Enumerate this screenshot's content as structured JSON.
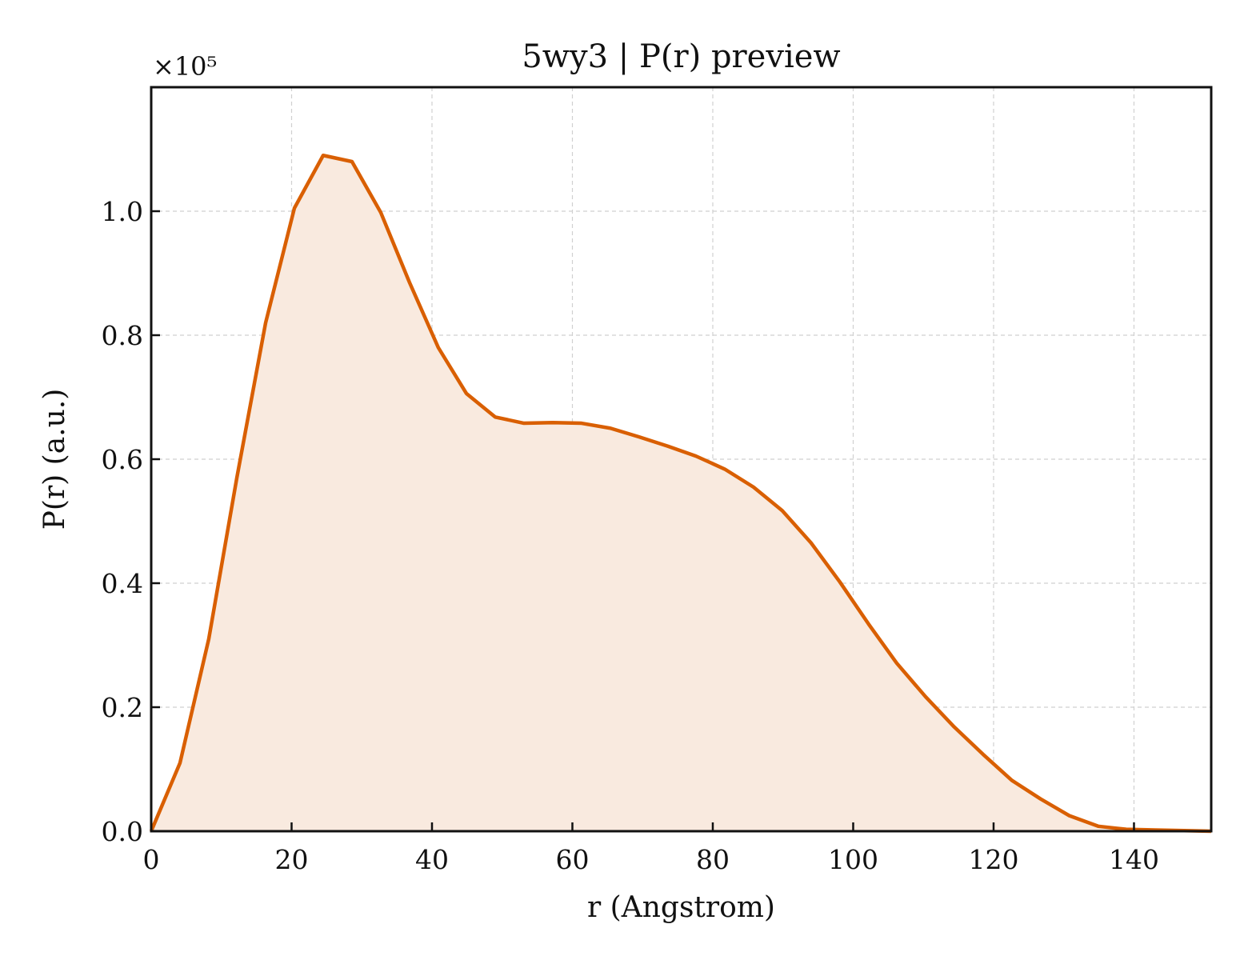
{
  "chart_data": {
    "type": "area",
    "title": "5wy3 | P(r) preview",
    "xlabel": "r (Angstrom)",
    "ylabel": "P(r) (a.u.)",
    "y_multiplier_label": "×10⁵",
    "xlim": [
      0,
      151
    ],
    "ylim": [
      0,
      1.2
    ],
    "x_ticks": [
      0,
      20,
      40,
      60,
      80,
      100,
      120,
      140
    ],
    "x_tick_labels": [
      "0",
      "20",
      "40",
      "60",
      "80",
      "100",
      "120",
      "140"
    ],
    "y_ticks": [
      0.0,
      0.2,
      0.4,
      0.6,
      0.8,
      1.0
    ],
    "y_tick_labels": [
      "0.0",
      "0.2",
      "0.4",
      "0.6",
      "0.8",
      "1.0"
    ],
    "grid": true,
    "colors": {
      "line": "#d95f02",
      "fill": "#f9eadf"
    },
    "series": [
      {
        "x": [
          0,
          4.1,
          8.2,
          12.2,
          16.3,
          20.4,
          24.5,
          28.6,
          32.7,
          36.8,
          40.9,
          44.9,
          49.0,
          53.1,
          57.2,
          61.3,
          65.4,
          69.5,
          73.6,
          77.6,
          81.7,
          85.8,
          89.9,
          94.0,
          98.1,
          102.2,
          106.2,
          110.3,
          114.4,
          118.5,
          122.6,
          126.7,
          130.8,
          134.9,
          138.9,
          143.0,
          147.1,
          151.0
        ],
        "y": [
          0.0,
          0.11,
          0.31,
          0.57,
          0.82,
          1.005,
          1.09,
          1.08,
          0.998,
          0.885,
          0.78,
          0.706,
          0.668,
          0.658,
          0.659,
          0.658,
          0.65,
          0.636,
          0.621,
          0.605,
          0.584,
          0.555,
          0.517,
          0.465,
          0.402,
          0.334,
          0.271,
          0.217,
          0.168,
          0.124,
          0.082,
          0.052,
          0.025,
          0.008,
          0.003,
          0.002,
          0.001,
          0.0
        ]
      }
    ]
  }
}
